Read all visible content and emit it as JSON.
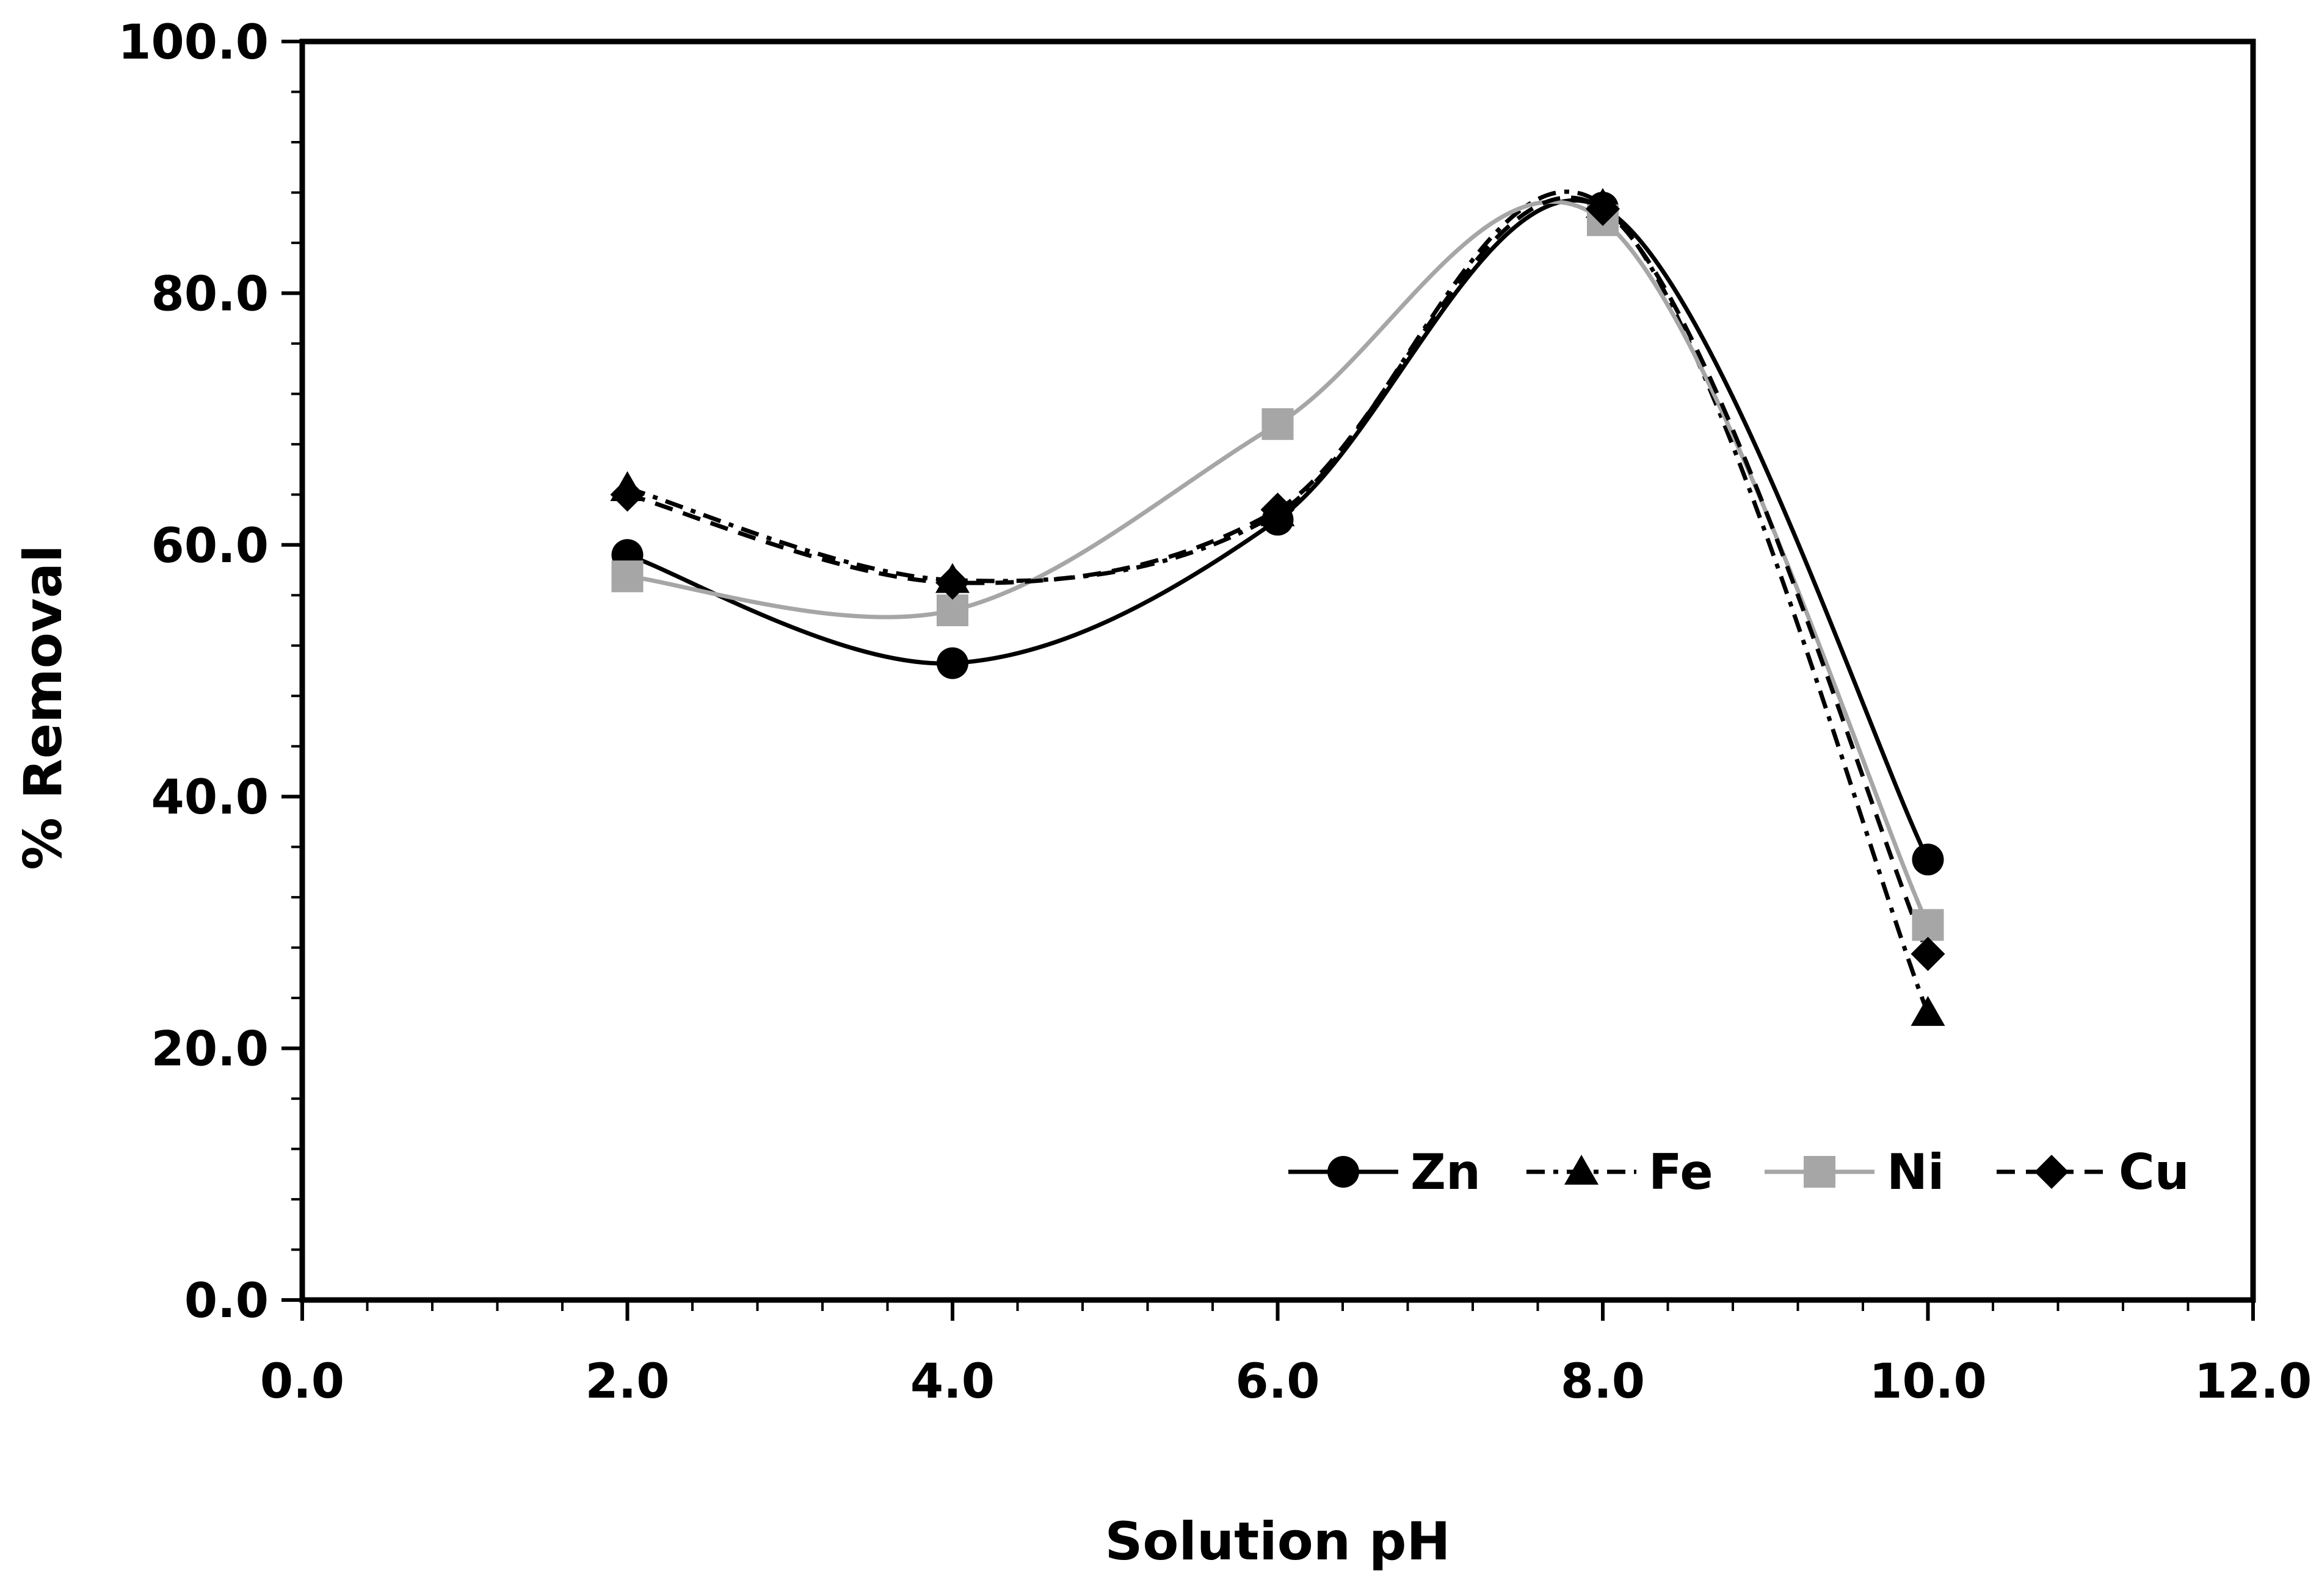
{
  "chart_data": {
    "type": "line",
    "title": "",
    "xlabel": "Solution pH",
    "ylabel": "% Removal",
    "xlim": [
      0,
      12
    ],
    "ylim": [
      0,
      100
    ],
    "x_ticks": [
      0,
      2,
      4,
      6,
      8,
      10,
      12
    ],
    "x_tick_labels": [
      "0.0",
      "2.0",
      "4.0",
      "6.0",
      "8.0",
      "10.0",
      "12.0"
    ],
    "y_ticks": [
      0,
      20,
      40,
      60,
      80,
      100
    ],
    "y_tick_labels": [
      "0.0",
      "20.0",
      "40.0",
      "60.0",
      "80.0",
      "100.0"
    ],
    "x_minor_step": 0.4,
    "y_minor_step": 4,
    "grid": false,
    "legend_position": "bottom-right",
    "smooth": true,
    "x": [
      2,
      4,
      6,
      8,
      10
    ],
    "series": [
      {
        "name": "Zn",
        "values": [
          59.2,
          50.6,
          62.0,
          86.8,
          35.0
        ],
        "color": "#000000",
        "dash": "solid",
        "marker": "circle"
      },
      {
        "name": "Fe",
        "values": [
          64.5,
          57.2,
          62.5,
          87.0,
          22.8
        ],
        "color": "#000000",
        "dash": "dashdot",
        "marker": "triangle"
      },
      {
        "name": "Ni",
        "values": [
          57.5,
          54.8,
          69.6,
          85.8,
          29.8
        ],
        "color": "#a6a6a6",
        "dash": "solid",
        "marker": "square"
      },
      {
        "name": "Cu",
        "values": [
          64.0,
          57.0,
          62.8,
          86.7,
          27.5
        ],
        "color": "#000000",
        "dash": "dashed",
        "marker": "diamond"
      }
    ]
  }
}
